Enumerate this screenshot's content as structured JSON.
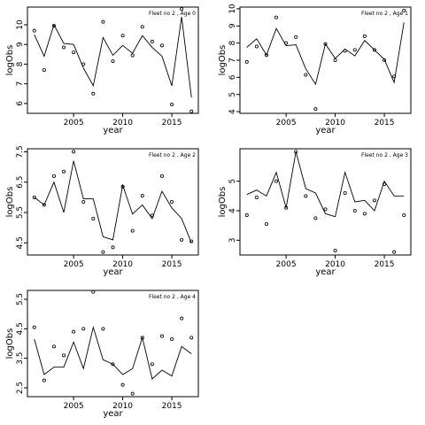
{
  "chart_data": [
    {
      "type": "line",
      "title": "Fleet no 2 , Age 0",
      "xlabel": "year",
      "ylabel": "logObs",
      "xlim": [
        2000.3,
        2017.7
      ],
      "ylim": [
        5.5,
        10.9
      ],
      "xticks": [
        2005,
        2010,
        2015
      ],
      "yticks": [
        6,
        7,
        8,
        9,
        10
      ],
      "x": [
        2001,
        2002,
        2003,
        2004,
        2005,
        2006,
        2007,
        2008,
        2009,
        2010,
        2011,
        2012,
        2013,
        2014,
        2015,
        2016,
        2017
      ],
      "series": [
        {
          "kind": "line",
          "values": [
            9.5,
            8.4,
            10.0,
            9.05,
            9.0,
            7.8,
            6.9,
            9.35,
            8.45,
            8.95,
            8.55,
            9.45,
            8.85,
            8.4,
            6.9,
            10.4,
            6.3
          ]
        },
        {
          "kind": "points",
          "values": [
            9.7,
            7.7,
            9.95,
            8.85,
            8.6,
            8.0,
            6.5,
            10.15,
            8.15,
            9.45,
            8.45,
            9.9,
            9.15,
            8.95,
            5.95,
            10.8,
            5.6
          ]
        }
      ]
    },
    {
      "type": "line",
      "title": "Fleet no 2 , Age 1",
      "xlabel": "year",
      "ylabel": "logObs",
      "xlim": [
        2000.3,
        2017.7
      ],
      "ylim": [
        3.9,
        10.1
      ],
      "xticks": [
        2005,
        2010,
        2015
      ],
      "yticks": [
        4,
        5,
        6,
        7,
        8,
        9,
        10
      ],
      "x": [
        2001,
        2002,
        2003,
        2004,
        2005,
        2006,
        2007,
        2008,
        2009,
        2010,
        2011,
        2012,
        2013,
        2014,
        2015,
        2016,
        2017
      ],
      "series": [
        {
          "kind": "line",
          "values": [
            7.75,
            8.25,
            7.3,
            8.85,
            7.85,
            7.9,
            6.5,
            5.6,
            7.95,
            7.1,
            7.65,
            7.25,
            8.15,
            7.6,
            7.05,
            5.7,
            9.2
          ]
        },
        {
          "kind": "points",
          "values": [
            6.9,
            7.8,
            7.3,
            9.5,
            8.0,
            8.35,
            6.15,
            4.15,
            7.95,
            7.0,
            7.55,
            7.6,
            8.4,
            7.6,
            7.0,
            6.05,
            9.9
          ]
        }
      ]
    },
    {
      "type": "line",
      "title": "Fleet no 2 , Age 2",
      "xlabel": "year",
      "ylabel": "logObs",
      "xlim": [
        2000.3,
        2017.7
      ],
      "ylim": [
        4.1,
        7.6
      ],
      "xticks": [
        2005,
        2010,
        2015
      ],
      "yticks": [
        4.5,
        5.5,
        6.5,
        7.5
      ],
      "x": [
        2001,
        2002,
        2003,
        2004,
        2005,
        2006,
        2007,
        2008,
        2009,
        2010,
        2011,
        2012,
        2013,
        2014,
        2015,
        2016,
        2017
      ],
      "series": [
        {
          "kind": "line",
          "values": [
            6.0,
            5.75,
            6.5,
            5.5,
            7.2,
            5.95,
            5.95,
            4.7,
            4.6,
            6.4,
            5.45,
            5.75,
            5.3,
            6.2,
            5.65,
            5.3,
            4.5
          ]
        },
        {
          "kind": "points",
          "values": [
            6.0,
            5.75,
            6.7,
            6.85,
            7.5,
            5.85,
            5.3,
            4.2,
            4.35,
            6.35,
            4.9,
            6.05,
            5.4,
            6.7,
            5.85,
            4.6,
            4.55
          ]
        }
      ]
    },
    {
      "type": "line",
      "title": "Fleet no 2 , Age 3",
      "xlabel": "year",
      "ylabel": "logObs",
      "xlim": [
        2000.3,
        2017.7
      ],
      "ylim": [
        2.5,
        6.1
      ],
      "xticks": [
        2005,
        2010,
        2015
      ],
      "yticks": [
        3.0,
        4.0,
        5.0
      ],
      "x": [
        2001,
        2002,
        2003,
        2004,
        2005,
        2006,
        2007,
        2008,
        2009,
        2010,
        2011,
        2012,
        2013,
        2014,
        2015,
        2016,
        2017
      ],
      "series": [
        {
          "kind": "line",
          "values": [
            4.55,
            4.7,
            4.5,
            5.3,
            4.1,
            6.0,
            4.75,
            4.6,
            3.9,
            3.8,
            5.3,
            4.3,
            4.35,
            4.0,
            5.0,
            4.5,
            4.5
          ]
        },
        {
          "kind": "points",
          "values": [
            3.85,
            4.45,
            3.55,
            5.0,
            4.1,
            6.0,
            4.5,
            3.75,
            4.05,
            2.65,
            4.6,
            4.0,
            3.9,
            4.35,
            4.9,
            2.6,
            3.85
          ]
        }
      ]
    },
    {
      "type": "line",
      "title": "Fleet no 2 , Age 4",
      "xlabel": "year",
      "ylabel": "logObs",
      "xlim": [
        2000.3,
        2017.7
      ],
      "ylim": [
        2.2,
        5.8
      ],
      "xticks": [
        2005,
        2010,
        2015
      ],
      "yticks": [
        2.5,
        3.5,
        4.5,
        5.5
      ],
      "x": [
        2001,
        2002,
        2003,
        2004,
        2005,
        2006,
        2007,
        2008,
        2009,
        2010,
        2011,
        2012,
        2013,
        2014,
        2015,
        2016,
        2017
      ],
      "series": [
        {
          "kind": "line",
          "values": [
            4.15,
            2.95,
            3.2,
            3.2,
            4.05,
            3.15,
            4.55,
            3.45,
            3.3,
            2.95,
            3.15,
            4.2,
            2.8,
            3.1,
            2.9,
            3.9,
            3.65
          ]
        },
        {
          "kind": "points",
          "values": [
            4.55,
            2.75,
            3.9,
            3.6,
            4.4,
            4.5,
            5.75,
            4.5,
            3.3,
            2.6,
            2.3,
            4.2,
            3.3,
            4.25,
            4.15,
            4.85,
            4.2
          ]
        }
      ]
    }
  ]
}
